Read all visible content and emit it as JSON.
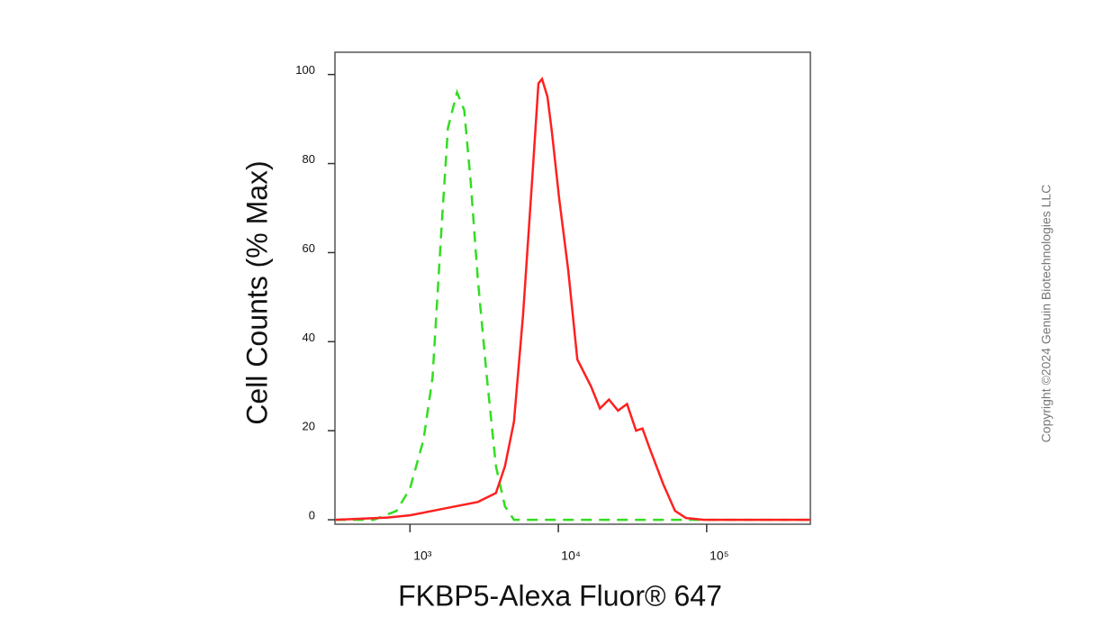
{
  "chart_data": {
    "type": "line",
    "y_label": "Cell Counts (% Max)",
    "x_label": "FKBP5-Alexa Fluor® 647",
    "watermark": "Copyright ©2024 Genuin Biotechnologies LLC",
    "xscale": "log",
    "xlim": [
      312,
      500000
    ],
    "ylim": [
      -1,
      105
    ],
    "xticks": [
      {
        "value": 1000,
        "label": "10³"
      },
      {
        "value": 10000,
        "label": "10⁴"
      },
      {
        "value": 100000,
        "label": "10⁵"
      }
    ],
    "yticks": [
      0,
      20,
      40,
      60,
      80,
      100
    ],
    "series": [
      {
        "color": "#33dd22",
        "dash": true,
        "x": [
          312,
          570,
          811,
          1000,
          1235,
          1420,
          1634,
          1803,
          2075,
          2322,
          2564,
          2866,
          3299,
          3795,
          4365,
          5024,
          500000
        ],
        "values": [
          0,
          0,
          2,
          7,
          18,
          32,
          66,
          88,
          96,
          92,
          76,
          54,
          32,
          12,
          3,
          0,
          0
        ]
      },
      {
        "color": "#ff2020",
        "dash": false,
        "x": [
          312,
          705,
          1000,
          1420,
          2018,
          2866,
          3795,
          4365,
          5024,
          5780,
          6652,
          7345,
          7770,
          8450,
          9060,
          10140,
          11670,
          13430,
          16580,
          19080,
          21950,
          25250,
          29050,
          33430,
          36890,
          41300,
          50950,
          61200,
          72450,
          95900,
          500000
        ],
        "values": [
          0,
          0.5,
          1,
          2,
          3,
          4,
          6,
          12,
          22,
          46,
          76,
          98,
          99,
          95,
          87,
          72,
          56,
          36,
          30,
          25,
          27,
          24.5,
          26,
          20,
          20.5,
          16,
          8,
          2,
          0.4,
          0,
          0
        ]
      }
    ]
  }
}
